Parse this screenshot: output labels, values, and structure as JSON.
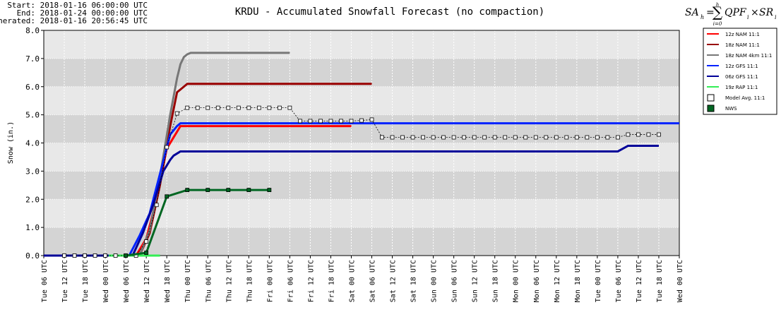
{
  "chart_data": {
    "type": "line",
    "title": "KRDU - Accumulated Snowfall Forecast (no compaction)",
    "info_lines": [
      "Start: 2018-01-16 06:00:00 UTC",
      "End: 2018-01-24 00:00:00 UTC",
      "Generated: 2018-01-16 20:56:45 UTC"
    ],
    "formula": {
      "lhs": "SA",
      "lhs_sub": "h",
      "eq": "=",
      "sigma": "∑",
      "sum_top": "h",
      "sum_bottom": "i=0",
      "body1": "QPF",
      "sub1": "i",
      "times": "×",
      "body2": "SR",
      "sub2": "i"
    },
    "y_label": "Snow (in.)",
    "xlim": [
      0,
      186
    ],
    "xticks": [
      {
        "value": 0,
        "label": "Tue 06 UTC"
      },
      {
        "value": 6,
        "label": "Tue 12 UTC"
      },
      {
        "value": 12,
        "label": "Tue 18 UTC"
      },
      {
        "value": 18,
        "label": "Wed 00 UTC"
      },
      {
        "value": 24,
        "label": "Wed 06 UTC"
      },
      {
        "value": 30,
        "label": "Wed 12 UTC"
      },
      {
        "value": 36,
        "label": "Wed 18 UTC"
      },
      {
        "value": 42,
        "label": "Thu 00 UTC"
      },
      {
        "value": 48,
        "label": "Thu 06 UTC"
      },
      {
        "value": 54,
        "label": "Thu 12 UTC"
      },
      {
        "value": 60,
        "label": "Thu 18 UTC"
      },
      {
        "value": 66,
        "label": "Fri 00 UTC"
      },
      {
        "value": 72,
        "label": "Fri 06 UTC"
      },
      {
        "value": 78,
        "label": "Fri 12 UTC"
      },
      {
        "value": 84,
        "label": "Fri 18 UTC"
      },
      {
        "value": 90,
        "label": "Sat 00 UTC"
      },
      {
        "value": 96,
        "label": "Sat 06 UTC"
      },
      {
        "value": 102,
        "label": "Sat 12 UTC"
      },
      {
        "value": 108,
        "label": "Sat 18 UTC"
      },
      {
        "value": 114,
        "label": "Sun 00 UTC"
      },
      {
        "value": 120,
        "label": "Sun 06 UTC"
      },
      {
        "value": 126,
        "label": "Sun 12 UTC"
      },
      {
        "value": 132,
        "label": "Sun 18 UTC"
      },
      {
        "value": 138,
        "label": "Mon 00 UTC"
      },
      {
        "value": 144,
        "label": "Mon 06 UTC"
      },
      {
        "value": 150,
        "label": "Mon 12 UTC"
      },
      {
        "value": 156,
        "label": "Mon 18 UTC"
      },
      {
        "value": 162,
        "label": "Tue 00 UTC"
      },
      {
        "value": 168,
        "label": "Tue 06 UTC"
      },
      {
        "value": 174,
        "label": "Tue 12 UTC"
      },
      {
        "value": 180,
        "label": "Tue 18 UTC"
      },
      {
        "value": 186,
        "label": "Wed 00 UTC"
      }
    ],
    "ylim": [
      0,
      8
    ],
    "yticks": [
      {
        "value": 0,
        "label": "0.0"
      },
      {
        "value": 1,
        "label": "1.0"
      },
      {
        "value": 2,
        "label": "2.0"
      },
      {
        "value": 3,
        "label": "3.0"
      },
      {
        "value": 4,
        "label": "4.0"
      },
      {
        "value": 5,
        "label": "5.0"
      },
      {
        "value": 6,
        "label": "6.0"
      },
      {
        "value": 7,
        "label": "7.0"
      },
      {
        "value": 8,
        "label": "8.0"
      }
    ],
    "grid": true,
    "legend": "right",
    "series": [
      {
        "name": "12z NAM 11:1",
        "color": "#ff0000",
        "x": [
          6,
          27,
          30,
          33,
          36,
          39,
          40,
          90
        ],
        "values": [
          0,
          0,
          0.6,
          2.0,
          3.8,
          4.4,
          4.6,
          4.6
        ]
      },
      {
        "name": "18z NAM 11:1",
        "color": "#990000",
        "x": [
          12,
          28,
          31,
          34,
          37,
          39,
          40,
          42,
          96
        ],
        "values": [
          0,
          0,
          0.8,
          2.5,
          4.6,
          5.8,
          5.9,
          6.1,
          6.1
        ]
      },
      {
        "name": "18z NAM 4km 11:1",
        "color": "#777777",
        "x": [
          12,
          28,
          31,
          34,
          37,
          39,
          40,
          41,
          42,
          43,
          72
        ],
        "values": [
          0,
          0,
          0.9,
          2.8,
          5.0,
          6.3,
          6.8,
          7.05,
          7.15,
          7.2,
          7.2
        ]
      },
      {
        "name": "12z GFS 11:1",
        "color": "#0022ff",
        "x": [
          6,
          25,
          28,
          31,
          34,
          37,
          39,
          40,
          186
        ],
        "values": [
          0,
          0,
          0.7,
          1.5,
          2.9,
          4.3,
          4.6,
          4.7,
          4.7
        ]
      },
      {
        "name": "06z GFS 11:1",
        "color": "#000099",
        "x": [
          0,
          26,
          29,
          32,
          35,
          37,
          38,
          40,
          168,
          171,
          180
        ],
        "values": [
          0,
          0,
          0.8,
          1.8,
          3.0,
          3.4,
          3.55,
          3.7,
          3.7,
          3.9,
          3.9
        ]
      },
      {
        "name": "19z RAP 11:1",
        "color": "#33ee55",
        "x": [
          19,
          34
        ],
        "values": [
          0,
          0
        ]
      },
      {
        "name": "Model Avg. 11:1",
        "color": "#000000",
        "marker": "square",
        "line": "dotted",
        "x": [
          6,
          9,
          12,
          15,
          18,
          21,
          24,
          27,
          30,
          33,
          36,
          39,
          42,
          45,
          48,
          51,
          54,
          57,
          60,
          63,
          66,
          69,
          72,
          75,
          78,
          81,
          84,
          87,
          90,
          93,
          96,
          99,
          102,
          105,
          108,
          111,
          114,
          117,
          120,
          123,
          126,
          129,
          132,
          135,
          138,
          141,
          144,
          147,
          150,
          153,
          156,
          159,
          162,
          165,
          168,
          171,
          174,
          177,
          180
        ],
        "values": [
          0,
          0,
          0,
          0,
          0,
          0,
          0,
          0,
          0.5,
          1.8,
          3.85,
          5.05,
          5.25,
          5.25,
          5.25,
          5.25,
          5.25,
          5.25,
          5.25,
          5.25,
          5.25,
          5.25,
          5.25,
          4.78,
          4.78,
          4.78,
          4.78,
          4.78,
          4.78,
          4.8,
          4.83,
          4.2,
          4.2,
          4.2,
          4.2,
          4.2,
          4.2,
          4.2,
          4.2,
          4.2,
          4.2,
          4.2,
          4.2,
          4.2,
          4.2,
          4.2,
          4.2,
          4.2,
          4.2,
          4.2,
          4.2,
          4.2,
          4.2,
          4.2,
          4.2,
          4.3,
          4.3,
          4.3,
          4.3
        ]
      },
      {
        "name": "NWS",
        "color": "#006622",
        "marker": "square",
        "x": [
          24,
          30,
          36,
          42,
          48,
          54,
          60,
          66
        ],
        "values": [
          0,
          0.1,
          2.1,
          2.33,
          2.33,
          2.33,
          2.33,
          2.33
        ]
      }
    ]
  }
}
